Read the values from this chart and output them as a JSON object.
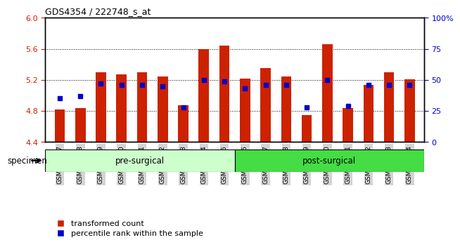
{
  "title": "GDS4354 / 222748_s_at",
  "samples": [
    "GSM746837",
    "GSM746838",
    "GSM746839",
    "GSM746840",
    "GSM746841",
    "GSM746842",
    "GSM746843",
    "GSM746844",
    "GSM746845",
    "GSM746846",
    "GSM746847",
    "GSM746848",
    "GSM746849",
    "GSM746850",
    "GSM746851",
    "GSM746852",
    "GSM746853",
    "GSM746854"
  ],
  "transformed_count": [
    4.82,
    4.84,
    5.3,
    5.27,
    5.3,
    5.24,
    4.87,
    5.6,
    5.64,
    5.22,
    5.35,
    5.24,
    4.75,
    5.66,
    4.84,
    5.14,
    5.3,
    5.21
  ],
  "percentile_rank": [
    35,
    37,
    47,
    46,
    46,
    45,
    28,
    50,
    49,
    43,
    46,
    46,
    28,
    50,
    29,
    46,
    46,
    46
  ],
  "ymin": 4.4,
  "ymax": 6.0,
  "rmin": 0,
  "rmax": 100,
  "yticks_left": [
    4.4,
    4.8,
    5.2,
    5.6,
    6.0
  ],
  "yticks_right": [
    0,
    25,
    50,
    75,
    100
  ],
  "bar_color": "#cc2200",
  "dot_color": "#0000cc",
  "pre_surgical_count": 9,
  "groups": [
    "pre-surgical",
    "post-surgical"
  ],
  "pre_color": "#ccffcc",
  "post_color": "#44dd44",
  "legend_items": [
    "transformed count",
    "percentile rank within the sample"
  ],
  "bar_width": 0.5,
  "title_fontsize": 9,
  "tick_fontsize": 6.5,
  "group_fontsize": 8.5,
  "legend_fontsize": 8
}
